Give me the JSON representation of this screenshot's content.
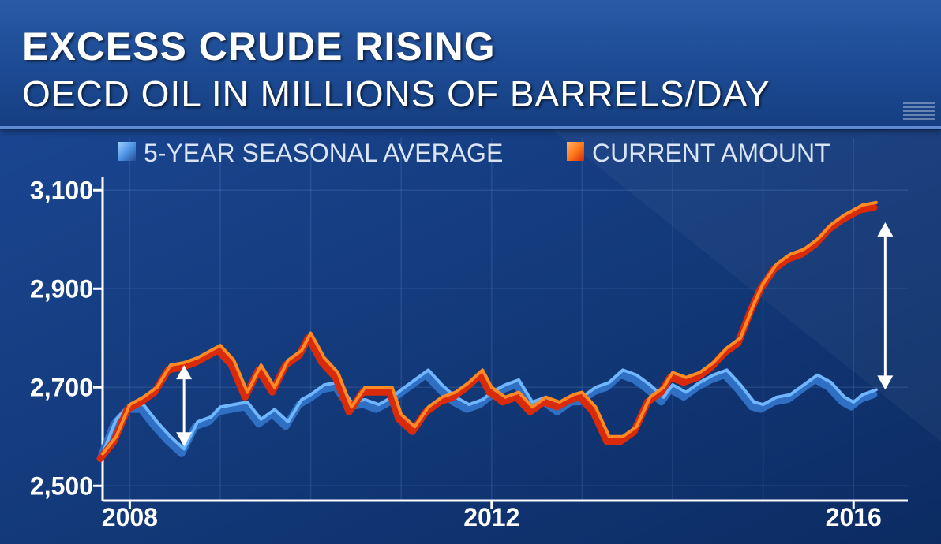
{
  "header": {
    "title": "EXCESS CRUDE RISING",
    "subtitle": "OECD OIL IN MILLIONS OF BARRELS/DAY"
  },
  "colors": {
    "seasonal": "#6fb6ff",
    "seasonal_shadow": "#2f6fc4",
    "current": "#ff8a24",
    "current_shadow": "#d92b0c",
    "arrow": "#ffffff"
  },
  "chart_data": {
    "type": "line",
    "title": "EXCESS CRUDE RISING",
    "subtitle": "OECD OIL IN MILLIONS OF BARRELS/DAY",
    "xlabel": "",
    "ylabel": "",
    "xlim": [
      2007.7,
      2016.6
    ],
    "ylim": [
      2470,
      3150
    ],
    "x_ticks": [
      2008,
      2012,
      2016
    ],
    "x_tick_labels": [
      "2008",
      "2012",
      "2016"
    ],
    "y_ticks": [
      2500,
      2700,
      2900,
      3100
    ],
    "y_tick_labels": [
      "2,500",
      "2,700",
      "2,900",
      "3,100"
    ],
    "grid": true,
    "legend_position": "top",
    "series": [
      {
        "name": "5-YEAR SEASONAL AVERAGE",
        "x": [
          2007.7,
          2007.85,
          2008.0,
          2008.15,
          2008.3,
          2008.45,
          2008.6,
          2008.75,
          2008.9,
          2009.0,
          2009.15,
          2009.3,
          2009.45,
          2009.6,
          2009.75,
          2009.9,
          2010.0,
          2010.15,
          2010.3,
          2010.45,
          2010.6,
          2010.75,
          2010.9,
          2011.0,
          2011.15,
          2011.3,
          2011.45,
          2011.6,
          2011.75,
          2011.9,
          2012.0,
          2012.15,
          2012.3,
          2012.45,
          2012.6,
          2012.75,
          2012.9,
          2013.0,
          2013.15,
          2013.3,
          2013.45,
          2013.6,
          2013.75,
          2013.9,
          2014.0,
          2014.15,
          2014.3,
          2014.45,
          2014.6,
          2014.75,
          2014.9,
          2015.0,
          2015.15,
          2015.3,
          2015.45,
          2015.6,
          2015.75,
          2015.9,
          2016.0,
          2016.1,
          2016.25
        ],
        "values": [
          2565,
          2635,
          2665,
          2665,
          2630,
          2600,
          2575,
          2630,
          2640,
          2660,
          2665,
          2670,
          2635,
          2655,
          2630,
          2675,
          2685,
          2705,
          2710,
          2670,
          2675,
          2665,
          2680,
          2695,
          2715,
          2735,
          2705,
          2680,
          2665,
          2675,
          2690,
          2705,
          2715,
          2670,
          2680,
          2660,
          2680,
          2680,
          2700,
          2710,
          2735,
          2725,
          2705,
          2680,
          2705,
          2690,
          2710,
          2725,
          2735,
          2705,
          2670,
          2665,
          2680,
          2685,
          2705,
          2725,
          2710,
          2680,
          2670,
          2685,
          2695
        ]
      },
      {
        "name": "CURRENT AMOUNT",
        "x": [
          2007.7,
          2007.85,
          2008.0,
          2008.15,
          2008.3,
          2008.45,
          2008.6,
          2008.75,
          2008.9,
          2009.0,
          2009.15,
          2009.3,
          2009.45,
          2009.6,
          2009.75,
          2009.9,
          2010.0,
          2010.15,
          2010.3,
          2010.45,
          2010.6,
          2010.75,
          2010.9,
          2011.0,
          2011.15,
          2011.3,
          2011.45,
          2011.6,
          2011.75,
          2011.9,
          2012.0,
          2012.15,
          2012.3,
          2012.45,
          2012.6,
          2012.75,
          2012.9,
          2013.0,
          2013.15,
          2013.3,
          2013.45,
          2013.6,
          2013.75,
          2013.9,
          2014.0,
          2014.15,
          2014.3,
          2014.45,
          2014.6,
          2014.75,
          2014.9,
          2015.0,
          2015.15,
          2015.3,
          2015.45,
          2015.6,
          2015.75,
          2015.9,
          2016.0,
          2016.1,
          2016.25
        ],
        "values": [
          2565,
          2600,
          2665,
          2680,
          2700,
          2745,
          2750,
          2760,
          2775,
          2785,
          2755,
          2690,
          2745,
          2700,
          2755,
          2775,
          2810,
          2760,
          2730,
          2660,
          2700,
          2700,
          2700,
          2645,
          2620,
          2660,
          2680,
          2690,
          2710,
          2735,
          2700,
          2680,
          2690,
          2660,
          2680,
          2670,
          2685,
          2690,
          2660,
          2600,
          2600,
          2620,
          2680,
          2700,
          2730,
          2720,
          2730,
          2750,
          2780,
          2800,
          2870,
          2910,
          2950,
          2970,
          2980,
          3000,
          3030,
          3050,
          3060,
          3070,
          3075
        ]
      }
    ],
    "annotations": [
      {
        "type": "double-arrow",
        "x": 2008.6,
        "from": 2580,
        "to": 2745
      },
      {
        "type": "double-arrow",
        "x": 2016.35,
        "from": 2695,
        "to": 3035
      }
    ]
  }
}
